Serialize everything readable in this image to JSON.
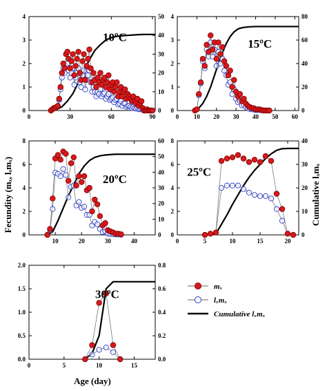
{
  "figure": {
    "xlabel": "Age (day)",
    "ylabel_left": "Fecundity (mₓ, lₓmₓ)",
    "ylabel_right": "Cumulative lₓmₓ",
    "legend": {
      "mx": "mₓ",
      "lxmx": "lₓmₓ",
      "cumulative": "Cumulative lₓmₓ"
    }
  },
  "colors": {
    "mx_fill": "#d7191c",
    "mx_edge": "#7a0000",
    "lxmx_edge": "#2b3cc4",
    "cumulative_line": "#000000",
    "connector": "#666666"
  },
  "chart_data": [
    {
      "type": "line",
      "label": "10ºC",
      "xlim": [
        0,
        92
      ],
      "xticks": [
        0,
        30,
        60,
        90
      ],
      "ylim": [
        0,
        4
      ],
      "yticks": [
        0,
        1,
        2,
        3,
        4
      ],
      "y2lim": [
        0,
        50
      ],
      "y2ticks": [
        0,
        10,
        20,
        30,
        40,
        50
      ],
      "mx": {
        "x": [
          16,
          17,
          18,
          19,
          20,
          21,
          22,
          23,
          24,
          25,
          26,
          27,
          28,
          29,
          30,
          31,
          32,
          33,
          34,
          35,
          36,
          37,
          38,
          39,
          40,
          41,
          42,
          43,
          44,
          45,
          46,
          47,
          48,
          49,
          50,
          51,
          52,
          53,
          54,
          55,
          56,
          57,
          58,
          59,
          60,
          61,
          62,
          63,
          64,
          65,
          66,
          67,
          68,
          69,
          70,
          71,
          72,
          73,
          74,
          75,
          76,
          77,
          78,
          79,
          80,
          81,
          82,
          83,
          84,
          85,
          86,
          87,
          88,
          89,
          90
        ],
        "y": [
          0.0,
          0.05,
          0.1,
          0.1,
          0.15,
          0.2,
          0.5,
          1.0,
          1.6,
          2.0,
          1.8,
          2.4,
          2.5,
          2.2,
          1.8,
          2.1,
          2.4,
          1.5,
          1.9,
          2.2,
          2.5,
          1.6,
          1.3,
          2.1,
          2.4,
          1.3,
          1.9,
          2.2,
          2.6,
          1.8,
          1.2,
          1.6,
          1.3,
          1.0,
          1.4,
          1.2,
          1.6,
          1.1,
          1.3,
          1.4,
          1.0,
          1.2,
          1.5,
          0.9,
          1.1,
          1.2,
          0.8,
          1.0,
          1.2,
          0.6,
          0.8,
          1.0,
          0.6,
          0.8,
          0.9,
          0.5,
          0.7,
          0.6,
          0.5,
          0.4,
          0.6,
          0.4,
          0.3,
          0.5,
          0.2,
          0.3,
          0.4,
          0.1,
          0.0,
          0.0,
          0.05,
          0.0,
          0.0,
          0.0,
          0.0
        ]
      },
      "lxmx": {
        "x": [
          16,
          17,
          18,
          19,
          20,
          21,
          22,
          23,
          24,
          25,
          26,
          27,
          28,
          29,
          30,
          31,
          32,
          33,
          34,
          35,
          36,
          37,
          38,
          39,
          40,
          41,
          42,
          43,
          44,
          45,
          46,
          47,
          48,
          49,
          50,
          51,
          52,
          53,
          54,
          55,
          56,
          57,
          58,
          59,
          60,
          61,
          62,
          63,
          64,
          65,
          66,
          67,
          68,
          69,
          70,
          71,
          72,
          73,
          74,
          75,
          76,
          77,
          78,
          79,
          80,
          81,
          82,
          83,
          84,
          85,
          86,
          87,
          88,
          89,
          90
        ],
        "y": [
          0.0,
          0.05,
          0.1,
          0.1,
          0.15,
          0.2,
          0.45,
          0.9,
          1.4,
          1.8,
          1.6,
          1.9,
          2.0,
          1.7,
          1.4,
          1.6,
          1.8,
          1.1,
          1.4,
          1.6,
          1.8,
          1.2,
          1.0,
          1.5,
          1.7,
          0.9,
          1.3,
          1.5,
          1.7,
          1.2,
          0.8,
          1.0,
          0.8,
          0.6,
          0.8,
          0.7,
          0.9,
          0.6,
          0.7,
          0.75,
          0.5,
          0.6,
          0.7,
          0.45,
          0.5,
          0.55,
          0.35,
          0.45,
          0.5,
          0.25,
          0.3,
          0.4,
          0.2,
          0.3,
          0.3,
          0.15,
          0.2,
          0.2,
          0.15,
          0.1,
          0.15,
          0.1,
          0.08,
          0.1,
          0.05,
          0.06,
          0.08,
          0.02,
          0.0,
          0.0,
          0.01,
          0.0,
          0.0,
          0.0,
          0.0
        ]
      },
      "cumulative": {
        "x": [
          16,
          20,
          24,
          28,
          32,
          36,
          40,
          44,
          48,
          52,
          56,
          60,
          64,
          68,
          72,
          76,
          80,
          84,
          92
        ],
        "y": [
          0,
          0.5,
          2,
          5,
          9,
          15,
          21,
          27,
          32,
          35,
          37.5,
          38.8,
          39.5,
          39.8,
          40,
          40.2,
          40.4,
          40.5,
          40.5
        ]
      }
    },
    {
      "type": "line",
      "label": "15ºC",
      "xlim": [
        0,
        62
      ],
      "xticks": [
        0,
        10,
        20,
        30,
        40,
        50,
        60
      ],
      "ylim": [
        0,
        4
      ],
      "yticks": [
        0,
        1,
        2,
        3,
        4
      ],
      "y2lim": [
        0,
        80
      ],
      "y2ticks": [
        0,
        20,
        40,
        60,
        80
      ],
      "mx": {
        "x": [
          9,
          10,
          11,
          12,
          13,
          14,
          15,
          16,
          17,
          18,
          19,
          20,
          21,
          22,
          23,
          24,
          25,
          26,
          27,
          28,
          29,
          30,
          31,
          32,
          33,
          34,
          35,
          36,
          37,
          38,
          39,
          40,
          41,
          42,
          43,
          44,
          45,
          46,
          47
        ],
        "y": [
          0.0,
          0.05,
          0.7,
          1.2,
          2.2,
          1.9,
          2.8,
          2.5,
          3.2,
          2.6,
          2.9,
          2.2,
          2.9,
          2.4,
          2.7,
          2.1,
          1.9,
          1.5,
          1.7,
          1.0,
          1.3,
          0.8,
          0.6,
          0.7,
          0.4,
          0.5,
          0.3,
          0.2,
          0.15,
          0.1,
          0.1,
          0.05,
          0.05,
          0.05,
          0.02,
          0.0,
          0.0,
          0.0,
          0.0
        ]
      },
      "lxmx": {
        "x": [
          9,
          10,
          11,
          12,
          13,
          14,
          15,
          16,
          17,
          18,
          19,
          20,
          21,
          22,
          23,
          24,
          25,
          26,
          27,
          28,
          29,
          30,
          31,
          32,
          33,
          34,
          35,
          36,
          37,
          38,
          39,
          40,
          41,
          42,
          43,
          44,
          45,
          46,
          47
        ],
        "y": [
          0.0,
          0.05,
          0.65,
          1.15,
          2.1,
          1.8,
          2.6,
          2.3,
          2.9,
          2.3,
          2.6,
          1.9,
          2.5,
          2.0,
          2.2,
          1.7,
          1.5,
          1.1,
          1.2,
          0.7,
          0.9,
          0.5,
          0.35,
          0.4,
          0.22,
          0.25,
          0.15,
          0.1,
          0.07,
          0.05,
          0.04,
          0.02,
          0.02,
          0.02,
          0.01,
          0.0,
          0.0,
          0.0,
          0.0
        ]
      },
      "cumulative": {
        "x": [
          9,
          11,
          13,
          15,
          17,
          19,
          21,
          23,
          25,
          27,
          29,
          31,
          33,
          35,
          37,
          40,
          45,
          50,
          62
        ],
        "y": [
          0,
          2,
          6,
          12,
          20,
          30,
          40,
          49,
          57,
          63,
          67,
          69.5,
          70.5,
          71,
          71.3,
          71.5,
          71.5,
          71.5,
          71.5
        ]
      }
    },
    {
      "type": "line",
      "label": "20ºC",
      "xlim": [
        0,
        48
      ],
      "xticks": [
        10,
        20,
        30,
        40
      ],
      "ylim": [
        0,
        8
      ],
      "yticks": [
        0,
        2,
        4,
        6,
        8
      ],
      "y2lim": [
        0,
        60
      ],
      "y2ticks": [
        0,
        10,
        20,
        30,
        40,
        50,
        60
      ],
      "mx": {
        "x": [
          7,
          8,
          9,
          10,
          11,
          12,
          13,
          14,
          15,
          16,
          17,
          18,
          19,
          20,
          21,
          22,
          23,
          24,
          25,
          26,
          27,
          28,
          29,
          30,
          31,
          32,
          33,
          34,
          35
        ],
        "y": [
          0.0,
          0.5,
          3.1,
          6.5,
          6.8,
          6.4,
          7.1,
          6.9,
          4.6,
          6.1,
          6.6,
          4.2,
          5.0,
          4.5,
          5.0,
          3.8,
          4.0,
          2.0,
          3.0,
          2.6,
          1.6,
          0.8,
          1.0,
          0.4,
          0.3,
          0.2,
          0.1,
          0.1,
          0.05
        ]
      },
      "lxmx": {
        "x": [
          7,
          8,
          9,
          10,
          11,
          12,
          13,
          14,
          15,
          16,
          17,
          18,
          19,
          20,
          21,
          22,
          23,
          24,
          25,
          26,
          27,
          28,
          29,
          30,
          31,
          32,
          33,
          34,
          35
        ],
        "y": [
          0.0,
          0.4,
          2.2,
          5.3,
          5.2,
          5.0,
          5.6,
          5.1,
          3.2,
          4.1,
          4.2,
          2.5,
          2.8,
          2.3,
          2.4,
          1.7,
          1.7,
          0.8,
          1.1,
          0.9,
          0.5,
          0.25,
          0.3,
          0.1,
          0.08,
          0.05,
          0.03,
          0.03,
          0.01
        ]
      },
      "cumulative": {
        "x": [
          7,
          9,
          11,
          13,
          15,
          17,
          19,
          21,
          23,
          25,
          27,
          29,
          31,
          33,
          35,
          40,
          48
        ],
        "y": [
          0,
          2,
          9,
          17,
          25,
          32,
          39,
          44,
          47.5,
          49.5,
          50.5,
          51,
          51.3,
          51.5,
          51.5,
          51.5,
          51.5
        ]
      }
    },
    {
      "type": "line",
      "label": "25ºC",
      "xlim": [
        0,
        22
      ],
      "xticks": [
        0,
        5,
        10,
        15,
        20
      ],
      "ylim": [
        0,
        8
      ],
      "yticks": [
        0,
        2,
        4,
        6,
        8
      ],
      "y2lim": [
        0,
        40
      ],
      "y2ticks": [
        0,
        10,
        20,
        30,
        40
      ],
      "mx": {
        "x": [
          5,
          6,
          7,
          8,
          9,
          10,
          11,
          12,
          13,
          14,
          15,
          16,
          17,
          18,
          19,
          20,
          21
        ],
        "y": [
          0.0,
          0.1,
          0.2,
          6.3,
          6.5,
          6.6,
          6.8,
          6.5,
          6.2,
          6.4,
          6.2,
          6.7,
          6.3,
          3.5,
          2.2,
          0.1,
          0.0
        ]
      },
      "lxmx": {
        "x": [
          5,
          6,
          7,
          8,
          9,
          10,
          11,
          12,
          13,
          14,
          15,
          16,
          17,
          18,
          19,
          20,
          21
        ],
        "y": [
          0.0,
          0.1,
          0.2,
          4.0,
          4.2,
          4.2,
          4.2,
          3.9,
          3.6,
          3.4,
          3.3,
          3.3,
          3.1,
          2.2,
          1.2,
          0.1,
          0.0
        ]
      },
      "cumulative": {
        "x": [
          5,
          6,
          7,
          8,
          9,
          10,
          11,
          12,
          13,
          14,
          15,
          16,
          17,
          18,
          19,
          20,
          21,
          22
        ],
        "y": [
          0,
          0.2,
          0.5,
          4.5,
          8.5,
          13,
          17,
          21,
          24.5,
          27.5,
          30,
          32.5,
          34.5,
          36,
          36.7,
          36.8,
          36.8,
          36.8
        ]
      }
    },
    {
      "type": "line",
      "label": "30ºC",
      "xlim": [
        0,
        18
      ],
      "xticks": [
        0,
        5,
        10,
        15
      ],
      "ylim": [
        0,
        2.0
      ],
      "yticks": [
        0.0,
        0.5,
        1.0,
        1.5,
        2.0
      ],
      "y2lim": [
        0,
        0.8
      ],
      "y2ticks": [
        0.0,
        0.2,
        0.4,
        0.6,
        0.8
      ],
      "mx": {
        "x": [
          8,
          9,
          10,
          11,
          12,
          13
        ],
        "y": [
          0.0,
          0.3,
          1.2,
          1.4,
          0.3,
          0.0
        ]
      },
      "lxmx": {
        "x": [
          8,
          9,
          10,
          11,
          12,
          13
        ],
        "y": [
          0.0,
          0.1,
          0.2,
          0.25,
          0.15,
          0.0
        ]
      },
      "cumulative": {
        "x": [
          8,
          9,
          10,
          11,
          12,
          18
        ],
        "y": [
          0.0,
          0.05,
          0.2,
          0.6,
          0.66,
          0.66
        ]
      }
    }
  ]
}
